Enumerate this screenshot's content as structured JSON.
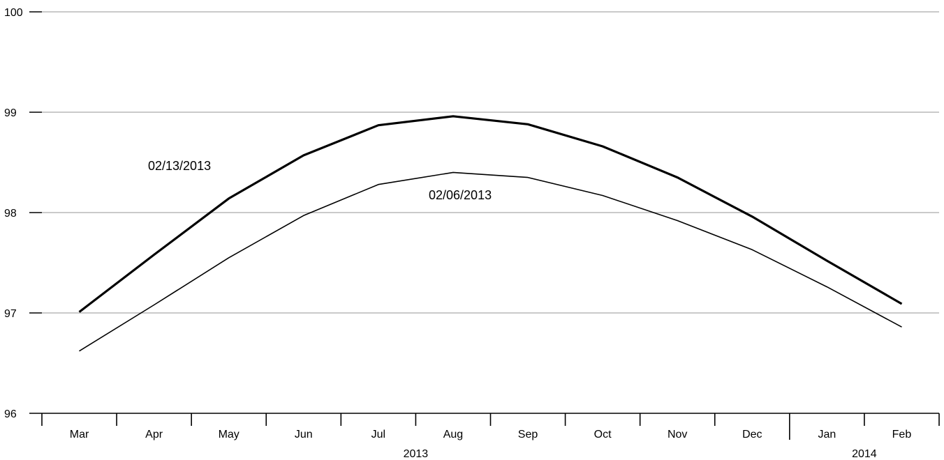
{
  "chart_data": {
    "type": "line",
    "categories": [
      "Mar",
      "Apr",
      "May",
      "Jun",
      "Jul",
      "Aug",
      "Sep",
      "Oct",
      "Nov",
      "Dec",
      "Jan",
      "Feb"
    ],
    "years": [
      {
        "label": "2013",
        "start": "Mar",
        "end": "Dec"
      },
      {
        "label": "2014",
        "start": "Jan",
        "end": "Feb"
      }
    ],
    "yticks": [
      96,
      97,
      98,
      99,
      100
    ],
    "ylim": [
      96,
      100
    ],
    "grid": true,
    "series": [
      {
        "name": "02/13/2013",
        "values": [
          97.01,
          97.58,
          98.14,
          98.57,
          98.87,
          98.96,
          98.88,
          98.66,
          98.35,
          97.96,
          97.52,
          97.09
        ]
      },
      {
        "name": "02/06/2013",
        "values": [
          96.62,
          97.08,
          97.55,
          97.97,
          98.28,
          98.4,
          98.35,
          98.17,
          97.92,
          97.63,
          97.26,
          96.86
        ]
      }
    ]
  }
}
